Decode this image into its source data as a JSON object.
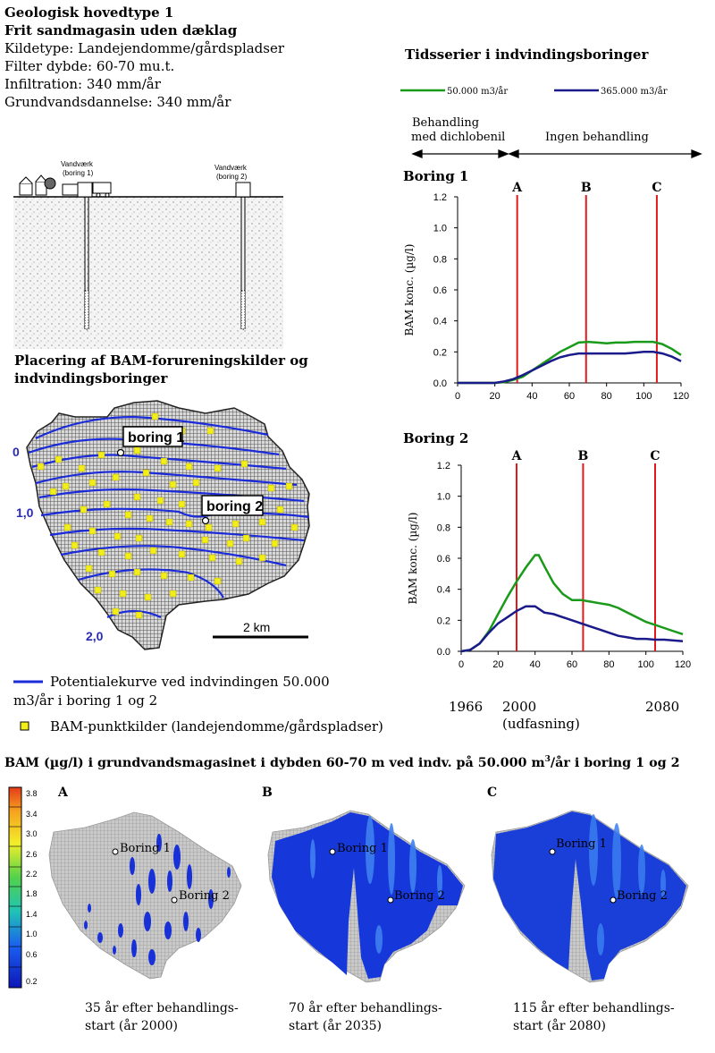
{
  "info": {
    "title1": "Geologisk hovedtype 1",
    "title2": "Frit sandmagasin uden dæklag",
    "lines": [
      "Kildetype: Landejendomme/gårdspladser",
      "Filter dybde: 60-70 mu.t.",
      "Infiltration: 340 mm/år",
      "Grundvandsdannelse: 340 mm/år"
    ]
  },
  "cross_section": {
    "well1": "Vandværk",
    "well1b": "(boring 1)",
    "well2": "Vandværk",
    "well2b": "(boring 2)"
  },
  "map": {
    "title1": "Placering af BAM-forureningskilder og",
    "title2": "indvindingsboringer",
    "label_boring1": "boring 1",
    "label_boring2": "boring 2",
    "contour_labels": [
      "0",
      "1,0",
      "2,0"
    ],
    "scale_label": "2 km",
    "legend_line": "Potentialekurve ved indvindingen 50.000",
    "legend_line2": "m3/år i boring 1 og 2",
    "legend_square": "BAM-punktkilder (landejendomme/gårdspladser)"
  },
  "timeseries": {
    "title": "Tidsserier i indvindingsboringer",
    "legend_green": "50.000 m3/år",
    "legend_blue": "365.000 m3/år",
    "phase1a": "Behandling",
    "phase1b": "med dichlobenil",
    "phase2": "Ingen behandling",
    "years": [
      "1966",
      "2000",
      "(udfasning)",
      "2080"
    ]
  },
  "chart_data": [
    {
      "type": "line",
      "title": "Boring 1",
      "ylabel": "BAM konc. (µg/l)",
      "xlim": [
        0,
        120
      ],
      "ylim": [
        0,
        1.2
      ],
      "xticks": [
        0,
        20,
        40,
        60,
        80,
        100,
        120
      ],
      "yticks": [
        "0.0",
        "0.2",
        "0.4",
        "0.6",
        "0.8",
        "1.0",
        "1.2"
      ],
      "markers": [
        {
          "label": "A",
          "x": 32
        },
        {
          "label": "B",
          "x": 69
        },
        {
          "label": "C",
          "x": 107
        }
      ],
      "series": [
        {
          "name": "50.000 m3/år",
          "color": "#1a9a1a",
          "x": [
            0,
            20,
            25,
            30,
            35,
            40,
            45,
            50,
            55,
            60,
            65,
            70,
            75,
            80,
            85,
            90,
            95,
            100,
            105,
            110,
            115,
            120
          ],
          "y": [
            0,
            0,
            0.005,
            0.02,
            0.04,
            0.08,
            0.12,
            0.16,
            0.2,
            0.23,
            0.26,
            0.265,
            0.26,
            0.255,
            0.26,
            0.26,
            0.265,
            0.265,
            0.265,
            0.25,
            0.22,
            0.18
          ]
        },
        {
          "name": "365.000 m3/år",
          "color": "#1a1a8a",
          "x": [
            0,
            20,
            25,
            30,
            35,
            40,
            45,
            50,
            55,
            60,
            65,
            70,
            75,
            80,
            85,
            90,
            95,
            100,
            105,
            110,
            115,
            120
          ],
          "y": [
            0,
            0,
            0.01,
            0.025,
            0.05,
            0.08,
            0.11,
            0.14,
            0.165,
            0.18,
            0.19,
            0.19,
            0.19,
            0.19,
            0.19,
            0.19,
            0.195,
            0.2,
            0.2,
            0.19,
            0.17,
            0.14
          ]
        }
      ]
    },
    {
      "type": "line",
      "title": "Boring 2",
      "ylabel": "BAM konc. (µg/l)",
      "xlim": [
        0,
        120
      ],
      "ylim": [
        0,
        1.2
      ],
      "xticks": [
        0,
        20,
        40,
        60,
        80,
        100,
        120
      ],
      "yticks": [
        "0.0",
        "0.2",
        "0.4",
        "0.6",
        "0.8",
        "1.0",
        "1.2"
      ],
      "markers": [
        {
          "label": "A",
          "x": 30
        },
        {
          "label": "B",
          "x": 66
        },
        {
          "label": "C",
          "x": 105
        }
      ],
      "series": [
        {
          "name": "50.000 m3/år",
          "color": "#1a9a1a",
          "x": [
            0,
            5,
            10,
            15,
            20,
            25,
            30,
            35,
            40,
            42,
            45,
            50,
            55,
            60,
            65,
            70,
            75,
            80,
            85,
            90,
            95,
            100,
            105,
            110,
            115,
            120
          ],
          "y": [
            0,
            0.01,
            0.05,
            0.13,
            0.24,
            0.35,
            0.45,
            0.54,
            0.62,
            0.62,
            0.55,
            0.44,
            0.37,
            0.33,
            0.33,
            0.32,
            0.31,
            0.3,
            0.28,
            0.25,
            0.22,
            0.19,
            0.17,
            0.15,
            0.13,
            0.11
          ]
        },
        {
          "name": "365.000 m3/år",
          "color": "#1a1a8a",
          "x": [
            0,
            5,
            10,
            15,
            20,
            25,
            30,
            35,
            40,
            45,
            50,
            55,
            60,
            65,
            70,
            75,
            80,
            85,
            90,
            95,
            100,
            105,
            110,
            115,
            120
          ],
          "y": [
            0,
            0.01,
            0.05,
            0.12,
            0.18,
            0.22,
            0.26,
            0.29,
            0.29,
            0.25,
            0.24,
            0.22,
            0.2,
            0.18,
            0.16,
            0.14,
            0.12,
            0.1,
            0.09,
            0.08,
            0.08,
            0.075,
            0.075,
            0.07,
            0.065
          ]
        }
      ]
    }
  ],
  "bottom": {
    "title_pre": "BAM (µg/l) i grundvandsmagasinet i dybden 60-70 m ved indv. på 50.000 m",
    "title_sup": "3",
    "title_post": "/år i boring 1 og 2",
    "colorbar": [
      "3.8",
      "3.4",
      "3.0",
      "2.6",
      "2.2",
      "1.8",
      "1.4",
      "1.0",
      "0.6",
      "0.2"
    ],
    "panels": [
      {
        "letter": "A",
        "boring1": "Boring 1",
        "boring2": "Boring 2",
        "cap1": "35 år efter behandlings-",
        "cap2": "start (år 2000)"
      },
      {
        "letter": "B",
        "boring1": "Boring 1",
        "boring2": "Boring 2",
        "cap1": "70 år efter behandlings-",
        "cap2": "start (år 2035)"
      },
      {
        "letter": "C",
        "boring1": "Boring 1",
        "boring2": "Boring 2",
        "cap1": "115 år efter behandlings-",
        "cap2": "start (år 2080)"
      }
    ]
  }
}
